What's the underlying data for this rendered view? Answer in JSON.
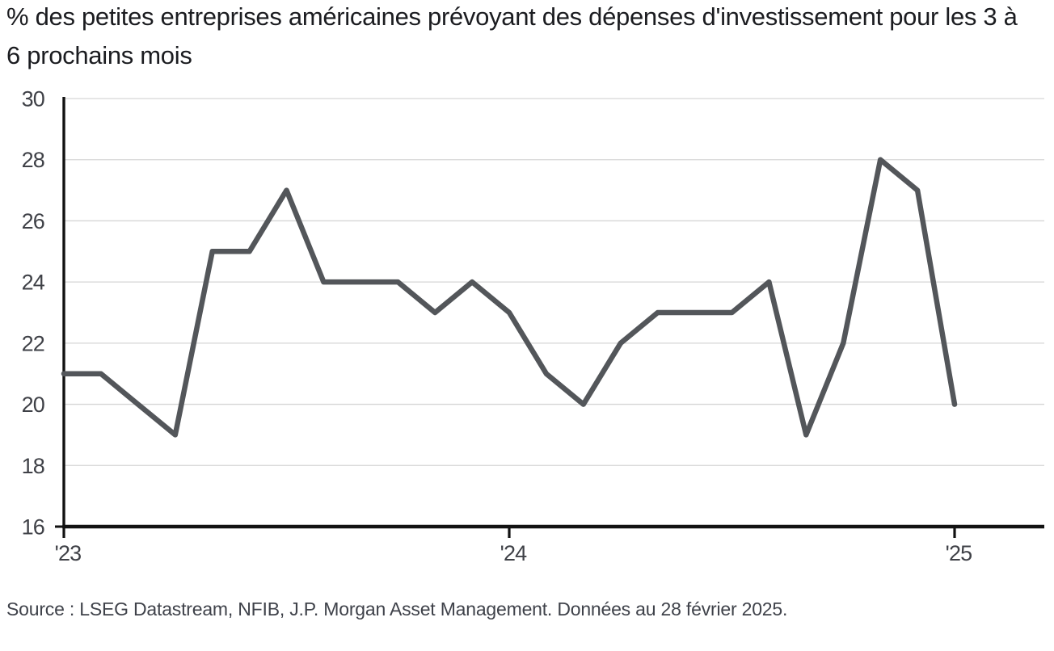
{
  "page": {
    "title": "% des petites entreprises américaines prévoyant des dépenses d'investissement pour les 3 à 6 prochains mois",
    "source": "Source : LSEG Datastream, NFIB, J.P. Morgan Asset Management. Données au 28 février 2025."
  },
  "colors": {
    "line": "#53565a",
    "grid": "#d6d6d6",
    "axis": "#121212",
    "tick_label": "#3f4147",
    "title_text": "#1b1c20",
    "source_text": "#3f424a",
    "background": "#ffffff"
  },
  "chart_data": {
    "type": "line",
    "title": "% des petites entreprises américaines prévoyant des dépenses d'investissement pour les 3 à 6 prochains mois",
    "x_frequency": "monthly",
    "x": [
      "2023-01",
      "2023-02",
      "2023-03",
      "2023-04",
      "2023-05",
      "2023-06",
      "2023-07",
      "2023-08",
      "2023-09",
      "2023-10",
      "2023-11",
      "2023-12",
      "2024-01",
      "2024-02",
      "2024-03",
      "2024-04",
      "2024-05",
      "2024-06",
      "2024-07",
      "2024-08",
      "2024-09",
      "2024-10",
      "2024-11",
      "2024-12",
      "2025-01"
    ],
    "values": [
      21,
      21,
      20,
      19,
      25,
      25,
      27,
      24,
      24,
      24,
      23,
      24,
      23,
      21,
      20,
      22,
      23,
      23,
      23,
      24,
      19,
      22,
      28,
      27,
      20
    ],
    "x_tick_labels": [
      "'23",
      "'24",
      "'25"
    ],
    "x_tick_indices": [
      0,
      12,
      24
    ],
    "y_ticks": [
      16,
      18,
      20,
      22,
      24,
      26,
      28,
      30
    ],
    "ylim": [
      16,
      30
    ],
    "xlabel": "",
    "ylabel": "",
    "grid": "horizontal-only",
    "legend": "none"
  }
}
